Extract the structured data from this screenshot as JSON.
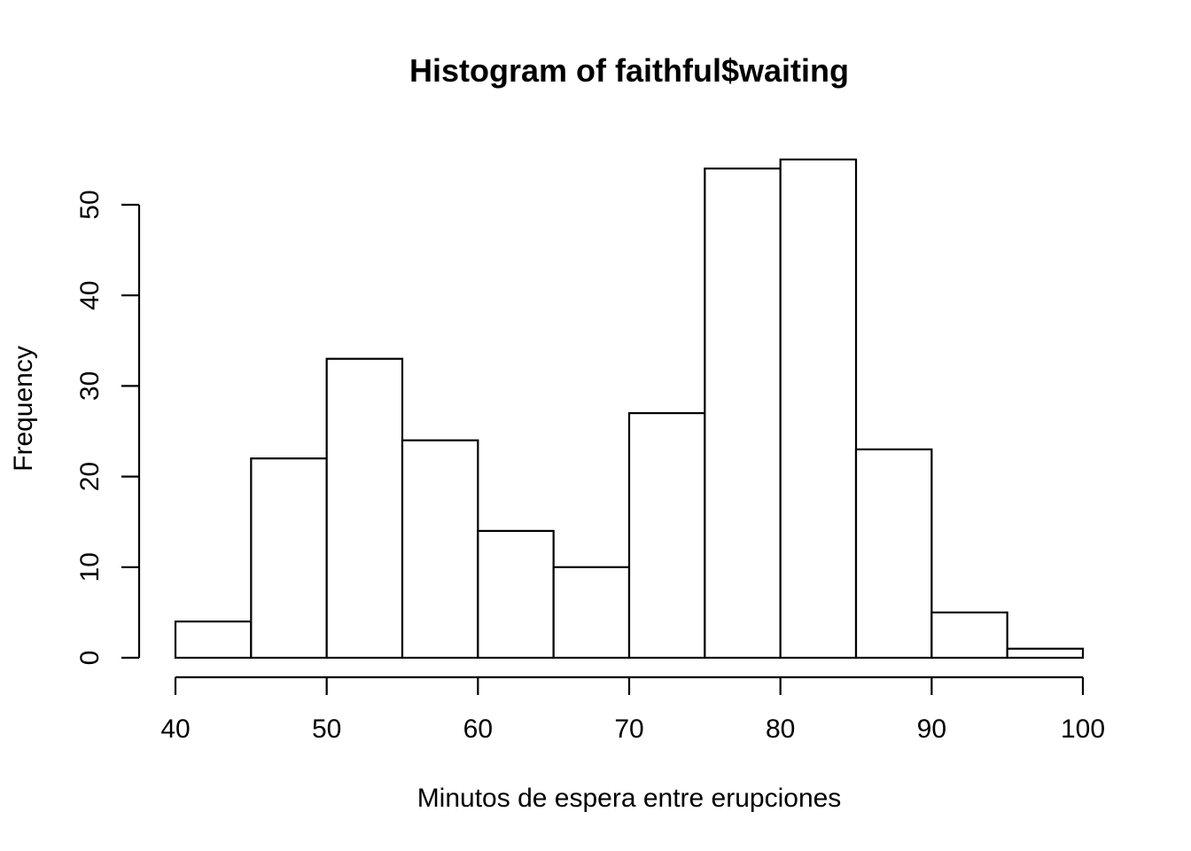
{
  "chart_data": {
    "type": "bar",
    "title": "Histogram of faithful$waiting",
    "xlabel": "Minutos de espera entre erupciones",
    "ylabel": "Frequency",
    "bins": [
      {
        "from": 40,
        "to": 45,
        "count": 4
      },
      {
        "from": 45,
        "to": 50,
        "count": 22
      },
      {
        "from": 50,
        "to": 55,
        "count": 33
      },
      {
        "from": 55,
        "to": 60,
        "count": 24
      },
      {
        "from": 60,
        "to": 65,
        "count": 14
      },
      {
        "from": 65,
        "to": 70,
        "count": 10
      },
      {
        "from": 70,
        "to": 75,
        "count": 27
      },
      {
        "from": 75,
        "to": 80,
        "count": 54
      },
      {
        "from": 80,
        "to": 85,
        "count": 55
      },
      {
        "from": 85,
        "to": 90,
        "count": 23
      },
      {
        "from": 90,
        "to": 95,
        "count": 5
      },
      {
        "from": 95,
        "to": 100,
        "count": 1
      }
    ],
    "xlim": [
      40,
      100
    ],
    "ylim": [
      0,
      50
    ],
    "x_ticks": [
      40,
      50,
      60,
      70,
      80,
      90,
      100
    ],
    "y_ticks": [
      0,
      10,
      20,
      30,
      40,
      50
    ],
    "grid": false
  }
}
